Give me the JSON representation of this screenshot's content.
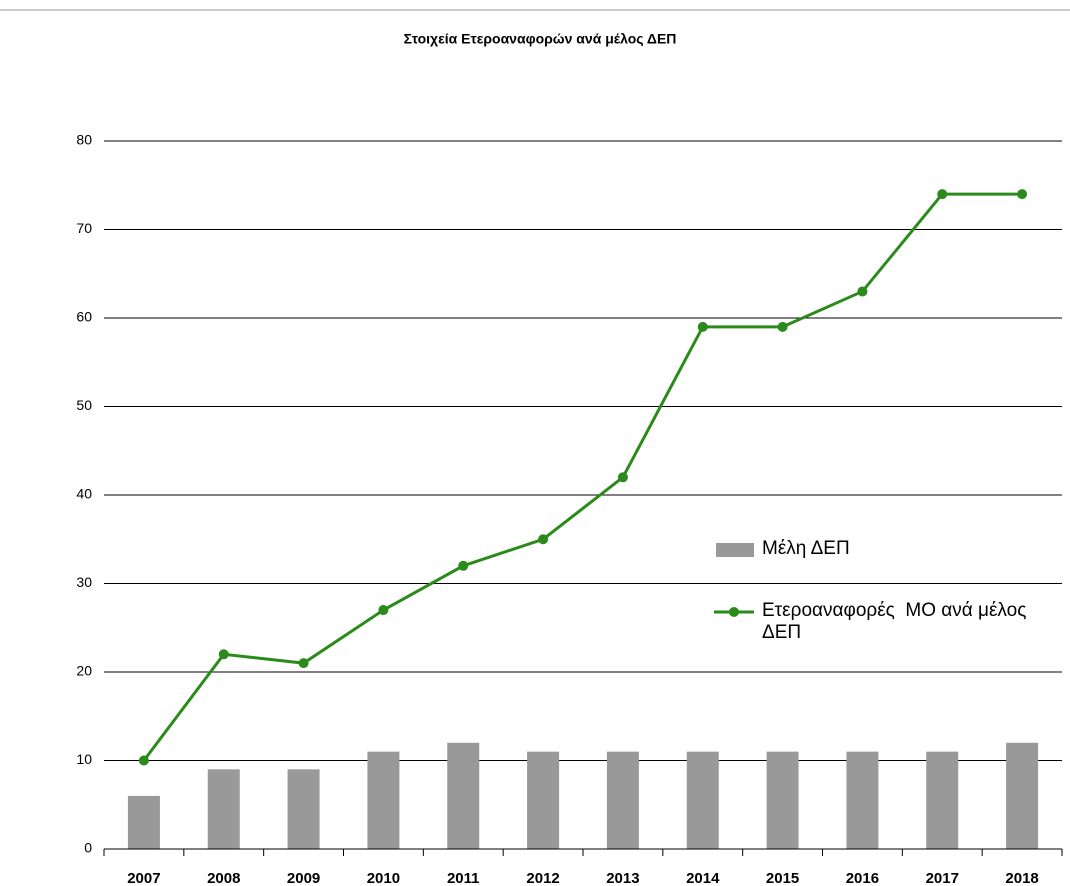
{
  "chart_data": {
    "type": "combo",
    "title": "Στοιχεία Ετεροαναφορών ανά μέλος ΔΕΠ",
    "categories": [
      "2007",
      "2008",
      "2009",
      "2010",
      "2011",
      "2012",
      "2013",
      "2014",
      "2015",
      "2016",
      "2017",
      "2018"
    ],
    "series": [
      {
        "name": "Μέλη ΔΕΠ",
        "type": "bar",
        "color": "#999999",
        "values": [
          6,
          9,
          9,
          11,
          12,
          11,
          11,
          11,
          11,
          11,
          11,
          12
        ]
      },
      {
        "name": "Ετεροαναφορές  ΜΟ ανά μέλος ΔΕΠ",
        "type": "line",
        "color": "#2a8a1a",
        "values": [
          10,
          22,
          21,
          27,
          32,
          35,
          42,
          59,
          59,
          63,
          74,
          74
        ]
      }
    ],
    "ylim": [
      0,
      80
    ],
    "yticks": [
      0,
      10,
      20,
      30,
      40,
      50,
      60,
      70,
      80
    ],
    "grid": true,
    "legend": "right"
  }
}
